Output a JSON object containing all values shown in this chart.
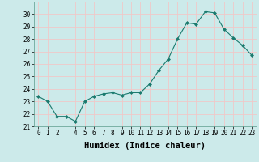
{
  "x": [
    0,
    1,
    2,
    3,
    4,
    5,
    6,
    7,
    8,
    9,
    10,
    11,
    12,
    13,
    14,
    15,
    16,
    17,
    18,
    19,
    20,
    21,
    22,
    23
  ],
  "y": [
    23.4,
    23.0,
    21.8,
    21.8,
    21.4,
    23.0,
    23.4,
    23.6,
    23.7,
    23.5,
    23.7,
    23.7,
    24.4,
    25.5,
    26.4,
    28.0,
    29.3,
    29.2,
    30.2,
    30.1,
    28.8,
    28.1,
    27.5,
    26.7
  ],
  "xlabel": "Humidex (Indice chaleur)",
  "ylim": [
    21,
    31
  ],
  "xlim": [
    -0.5,
    23.5
  ],
  "yticks": [
    21,
    22,
    23,
    24,
    25,
    26,
    27,
    28,
    29,
    30
  ],
  "xticks": [
    0,
    1,
    2,
    4,
    5,
    6,
    7,
    8,
    9,
    10,
    11,
    12,
    13,
    14,
    15,
    16,
    17,
    18,
    19,
    20,
    21,
    22,
    23
  ],
  "line_color": "#1a7a6e",
  "marker": "D",
  "bg_color": "#cceaea",
  "grid_color": "#f0c8c8",
  "label_fontsize": 7.5,
  "tick_fontsize": 5.5
}
